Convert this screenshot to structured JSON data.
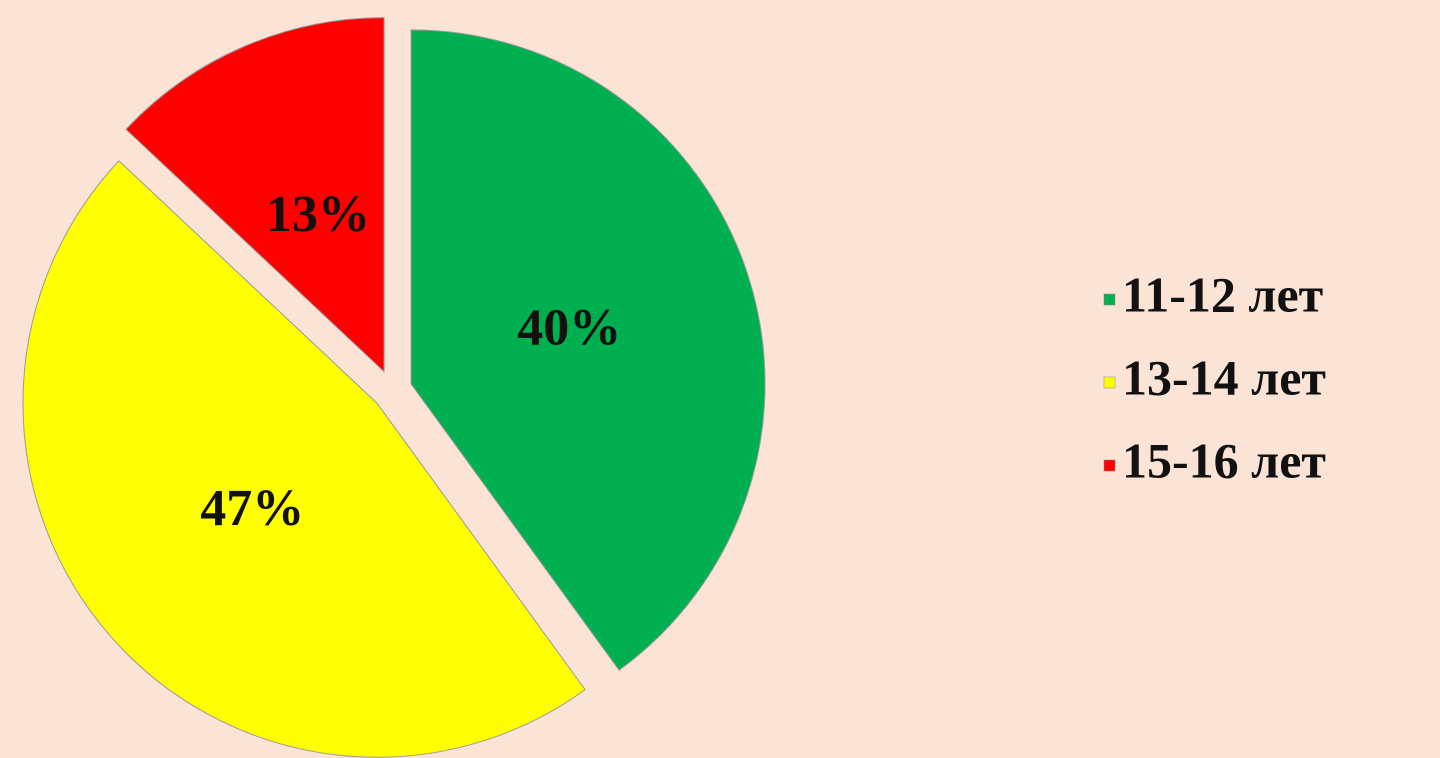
{
  "chart_data": {
    "type": "pie",
    "categories": [
      "11-12 лет",
      "13-14 лет",
      "15-16 лет"
    ],
    "values": [
      40,
      47,
      13
    ],
    "value_labels": [
      "40%",
      "47%",
      "13%"
    ],
    "colors": [
      "#00b050",
      "#ffff00",
      "#ff0000"
    ],
    "legend": "right"
  }
}
